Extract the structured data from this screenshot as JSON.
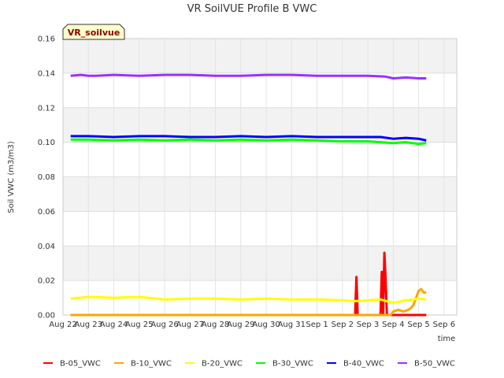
{
  "chart_data": {
    "type": "line",
    "title": "VR SoilVUE Profile B VWC",
    "xlabel": "time",
    "ylabel": "Soil VWC (m3/m3)",
    "badge": "VR_soilvue",
    "ylim": [
      0,
      0.16
    ],
    "yticks": [
      0,
      0.02,
      0.04,
      0.06,
      0.08,
      0.1,
      0.12,
      0.14,
      0.16
    ],
    "ytick_labels": [
      "0.00",
      "0.02",
      "0.04",
      "0.06",
      "0.08",
      "0.10",
      "0.12",
      "0.14",
      "0.16"
    ],
    "xlim": [
      0,
      15.5
    ],
    "xticks": [
      0,
      1,
      2,
      3,
      4,
      5,
      6,
      7,
      8,
      9,
      10,
      11,
      12,
      13,
      14,
      15
    ],
    "xtick_labels": [
      "Aug 22",
      "Aug 23",
      "Aug 24",
      "Aug 25",
      "Aug 26",
      "Aug 27",
      "Aug 28",
      "Aug 29",
      "Aug 30",
      "Aug 31",
      "Sep 1",
      "Sep 2",
      "Sep 3",
      "Sep 4",
      "Sep 5",
      "Sep 6"
    ],
    "grid": true,
    "legend_position": "bottom",
    "series": [
      {
        "name": "B-05_VWC",
        "color": "#ff0000",
        "x": [
          0.3,
          11.5,
          11.55,
          11.6,
          11.65,
          11.7,
          12.5,
          12.55,
          12.6,
          12.65,
          12.7,
          12.75,
          12.8,
          14.3
        ],
        "y": [
          0.0,
          0.0,
          0.022,
          0.0,
          0.0,
          0.0,
          0.0,
          0.025,
          0.0,
          0.036,
          0.02,
          0.0,
          0.0,
          0.0
        ]
      },
      {
        "name": "B-10_VWC",
        "color": "#ffa500",
        "x": [
          0.3,
          12.9,
          13.0,
          13.2,
          13.4,
          13.6,
          13.7,
          13.8,
          13.9,
          14.0,
          14.1,
          14.2,
          14.3
        ],
        "y": [
          0.0,
          0.0,
          0.002,
          0.003,
          0.002,
          0.003,
          0.004,
          0.006,
          0.01,
          0.014,
          0.015,
          0.013,
          0.013
        ]
      },
      {
        "name": "B-20_VWC",
        "color": "#ffff00",
        "x": [
          0.3,
          1.0,
          2.0,
          3.0,
          4.0,
          5.0,
          6.0,
          7.0,
          8.0,
          9.0,
          10.0,
          11.0,
          11.5,
          12.0,
          12.5,
          13.0,
          13.5,
          14.0,
          14.3
        ],
        "y": [
          0.0095,
          0.0105,
          0.01,
          0.0105,
          0.009,
          0.0095,
          0.0095,
          0.009,
          0.0095,
          0.009,
          0.009,
          0.0085,
          0.008,
          0.0085,
          0.009,
          0.007,
          0.0085,
          0.0095,
          0.009
        ]
      },
      {
        "name": "B-30_VWC",
        "color": "#00ff00",
        "x": [
          0.3,
          1.0,
          2.0,
          3.0,
          4.0,
          5.0,
          6.0,
          7.0,
          8.0,
          9.0,
          10.0,
          11.0,
          12.0,
          12.5,
          13.0,
          13.5,
          14.0,
          14.3
        ],
        "y": [
          0.1015,
          0.1015,
          0.101,
          0.1015,
          0.101,
          0.1015,
          0.101,
          0.1015,
          0.101,
          0.1015,
          0.101,
          0.1005,
          0.1005,
          0.1,
          0.0995,
          0.1,
          0.099,
          0.0995
        ]
      },
      {
        "name": "B-40_VWC",
        "color": "#0000ff",
        "x": [
          0.3,
          1.0,
          2.0,
          3.0,
          4.0,
          5.0,
          6.0,
          7.0,
          8.0,
          9.0,
          10.0,
          11.0,
          12.0,
          12.5,
          13.0,
          13.5,
          14.0,
          14.3
        ],
        "y": [
          0.1035,
          0.1035,
          0.103,
          0.1035,
          0.1035,
          0.103,
          0.103,
          0.1035,
          0.103,
          0.1035,
          0.103,
          0.103,
          0.103,
          0.103,
          0.102,
          0.1025,
          0.102,
          0.101
        ]
      },
      {
        "name": "B-50_VWC",
        "color": "#9b30ff",
        "x": [
          0.3,
          0.7,
          1.0,
          1.3,
          2.0,
          3.0,
          4.0,
          5.0,
          6.0,
          7.0,
          8.0,
          9.0,
          10.0,
          11.0,
          12.0,
          12.7,
          13.0,
          13.5,
          14.0,
          14.3
        ],
        "y": [
          0.1385,
          0.139,
          0.1385,
          0.1385,
          0.139,
          0.1385,
          0.139,
          0.139,
          0.1385,
          0.1385,
          0.139,
          0.139,
          0.1385,
          0.1385,
          0.1385,
          0.138,
          0.137,
          0.1375,
          0.137,
          0.137
        ]
      }
    ]
  }
}
